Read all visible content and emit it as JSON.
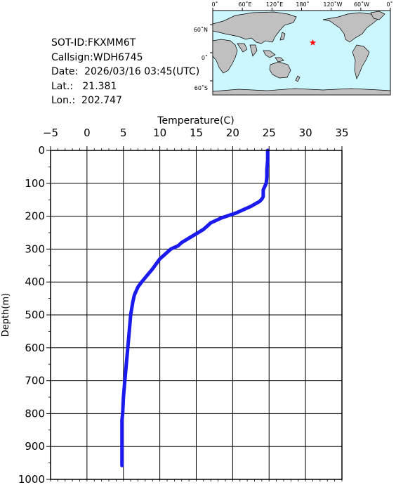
{
  "metadata": {
    "sot_id": "SOT-ID:FKXMM6T",
    "callsign": "Callsign:WDH6745",
    "date": "Date:  2026/03/16 03:45(UTC)",
    "lat": "Lat.:   21.381",
    "lon": "Lon.:  202.747"
  },
  "map": {
    "top_labels": [
      "0˚",
      "60˚E",
      "120˚E",
      "180˚",
      "120˚W",
      "60˚W",
      "0˚"
    ],
    "left_labels": [
      "60˚N",
      "0˚",
      "60˚S"
    ],
    "station": {
      "lon": 202.747,
      "lat": 21.381
    },
    "colors": {
      "ocean": "#cdf7ff",
      "land": "#c0c0c0",
      "marker": "#ff0000"
    }
  },
  "chart_data": {
    "type": "line",
    "xlabel": "Temperature(C)",
    "ylabel": "Depth(m)",
    "xlim": [
      -5,
      35
    ],
    "ylim": [
      0,
      1000
    ],
    "y_inverted": true,
    "xticks": [
      "-5",
      "0",
      "5",
      "10",
      "15",
      "20",
      "25",
      "30",
      "35"
    ],
    "yticks": [
      "0",
      "100",
      "200",
      "300",
      "400",
      "500",
      "600",
      "700",
      "800",
      "900",
      "1000"
    ],
    "grid": true,
    "series_color": "#1a1aee",
    "series": [
      {
        "x": [
          24.8,
          24.8,
          24.7,
          24.7,
          24.6,
          24.2,
          24.2,
          24.0,
          23.7,
          23.3,
          22.5,
          21.5,
          20.5,
          18.5,
          17.0,
          16.0,
          14.5,
          13.0,
          12.5,
          11.5,
          11.0,
          10.0,
          9.0,
          7.5,
          7.0,
          6.5,
          6.3,
          6.0,
          5.8,
          5.6,
          5.4,
          5.2,
          5.0,
          4.9,
          4.8,
          4.8
        ],
        "y": [
          0,
          30,
          60,
          80,
          100,
          120,
          140,
          148,
          155,
          160,
          170,
          180,
          190,
          205,
          220,
          240,
          260,
          280,
          290,
          300,
          310,
          330,
          360,
          400,
          415,
          440,
          460,
          500,
          550,
          600,
          650,
          700,
          750,
          800,
          820,
          958
        ]
      }
    ]
  }
}
